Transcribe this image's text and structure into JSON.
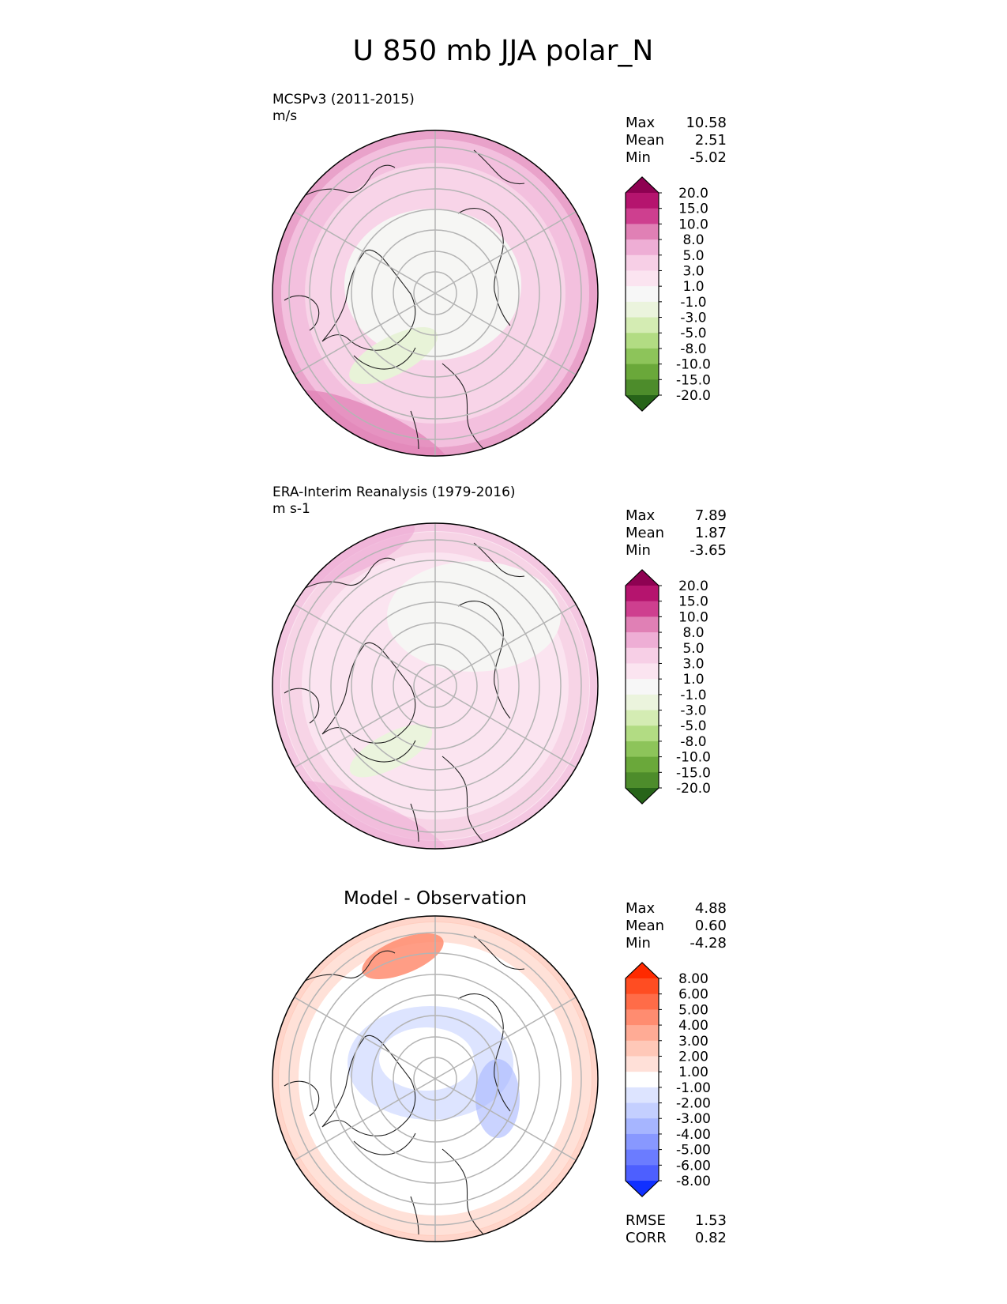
{
  "title": "U 850 mb JJA polar_N",
  "panels": [
    {
      "id": "model",
      "name": "MCSPv3 (2011-2015)",
      "units": "m/s",
      "stats": [
        {
          "label": "Max",
          "value": "10.58"
        },
        {
          "label": "Mean",
          "value": "2.51"
        },
        {
          "label": "Min",
          "value": "-5.02"
        }
      ],
      "colorbar": {
        "ticks": [
          "20.0",
          "15.0",
          "10.0",
          "8.0",
          "5.0",
          "3.0",
          "1.0",
          "-1.0",
          "-3.0",
          "-5.0",
          "-8.0",
          "-10.0",
          "-15.0",
          "-20.0"
        ],
        "colors": [
          "#8e0152",
          "#b5146e",
          "#ce3f8f",
          "#e080b5",
          "#eeaed5",
          "#f7cfe6",
          "#fbe4f0",
          "#f7f7f7",
          "#ebf4dd",
          "#d4ecb3",
          "#b2dc83",
          "#8dc45a",
          "#6aa83a",
          "#4d8c2b",
          "#276419"
        ]
      },
      "field": {
        "base": "#f8d4e8",
        "inner": "#f6f6f4",
        "outer": "#eeaed5",
        "edge": "#e080b5",
        "negative": "#e8f3d8"
      }
    },
    {
      "id": "reference",
      "name": "ERA-Interim Reanalysis (1979-2016)",
      "units": "m s-1",
      "stats": [
        {
          "label": "Max",
          "value": "7.89"
        },
        {
          "label": "Mean",
          "value": "1.87"
        },
        {
          "label": "Min",
          "value": "-3.65"
        }
      ],
      "colorbar": {
        "ticks": [
          "20.0",
          "15.0",
          "10.0",
          "8.0",
          "5.0",
          "3.0",
          "1.0",
          "-1.0",
          "-3.0",
          "-5.0",
          "-8.0",
          "-10.0",
          "-15.0",
          "-20.0"
        ],
        "colors": [
          "#8e0152",
          "#b5146e",
          "#ce3f8f",
          "#e080b5",
          "#eeaed5",
          "#f7cfe6",
          "#fbe4f0",
          "#f7f7f7",
          "#ebf4dd",
          "#d4ecb3",
          "#b2dc83",
          "#8dc45a",
          "#6aa83a",
          "#4d8c2b",
          "#276419"
        ]
      },
      "field": {
        "base": "#fbe4f0",
        "inner": "#f6f6f4",
        "outer": "#f4c6de",
        "edge": "#eeaed5",
        "negative": "#ebf4dd"
      }
    },
    {
      "id": "difference",
      "title": "Model - Observation",
      "stats": [
        {
          "label": "Max",
          "value": "4.88"
        },
        {
          "label": "Mean",
          "value": "0.60"
        },
        {
          "label": "Min",
          "value": "-4.28"
        }
      ],
      "colorbar": {
        "ticks": [
          "8.00",
          "6.00",
          "5.00",
          "4.00",
          "3.00",
          "2.00",
          "1.00",
          "-1.00",
          "-2.00",
          "-3.00",
          "-4.00",
          "-5.00",
          "-6.00",
          "-8.00"
        ],
        "colors": [
          "#ff2a00",
          "#ff4d22",
          "#ff6c48",
          "#ff8c70",
          "#ffab95",
          "#ffc8b8",
          "#ffe0d8",
          "#ffffff",
          "#dde4ff",
          "#c4cfff",
          "#a6b5ff",
          "#8898ff",
          "#6b7cff",
          "#4d5fff",
          "#1030ff"
        ]
      },
      "field": {
        "base": "#ffffff",
        "inner": "#dde4ff",
        "outer": "#ffc8b8",
        "edge": "#ffab95",
        "negative": "#dde4ff"
      },
      "metrics": [
        {
          "label": "RMSE",
          "value": "1.53"
        },
        {
          "label": "CORR",
          "value": "0.82"
        }
      ]
    }
  ]
}
